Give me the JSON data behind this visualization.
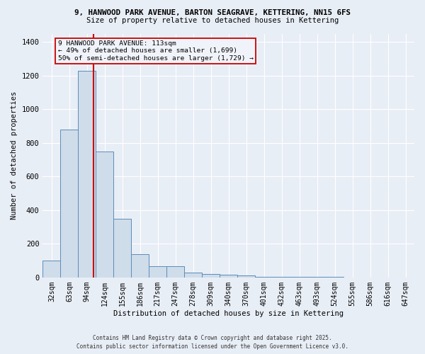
{
  "title_line1": "9, HANWOOD PARK AVENUE, BARTON SEAGRAVE, KETTERING, NN15 6FS",
  "title_line2": "Size of property relative to detached houses in Kettering",
  "xlabel": "Distribution of detached houses by size in Kettering",
  "ylabel": "Number of detached properties",
  "bar_color": "#cfdcea",
  "bar_edge_color": "#5b8db8",
  "background_color": "#e8eef6",
  "categories": [
    "32sqm",
    "63sqm",
    "94sqm",
    "124sqm",
    "155sqm",
    "186sqm",
    "217sqm",
    "247sqm",
    "278sqm",
    "309sqm",
    "340sqm",
    "370sqm",
    "401sqm",
    "432sqm",
    "463sqm",
    "493sqm",
    "524sqm",
    "555sqm",
    "586sqm",
    "616sqm",
    "647sqm"
  ],
  "values": [
    100,
    880,
    1230,
    750,
    350,
    140,
    65,
    65,
    27,
    20,
    15,
    10,
    5,
    3,
    3,
    2,
    2,
    1,
    1,
    0,
    0
  ],
  "ylim": [
    0,
    1450
  ],
  "yticks": [
    0,
    200,
    400,
    600,
    800,
    1000,
    1200,
    1400
  ],
  "annotation_line1": "9 HANWOOD PARK AVENUE: 113sqm",
  "annotation_line2": "← 49% of detached houses are smaller (1,699)",
  "annotation_line3": "50% of semi-detached houses are larger (1,729) →",
  "vline_x": 2.35,
  "grid_color": "#ffffff",
  "vline_color": "#cc0000",
  "footer_line1": "Contains HM Land Registry data © Crown copyright and database right 2025.",
  "footer_line2": "Contains public sector information licensed under the Open Government Licence v3.0."
}
